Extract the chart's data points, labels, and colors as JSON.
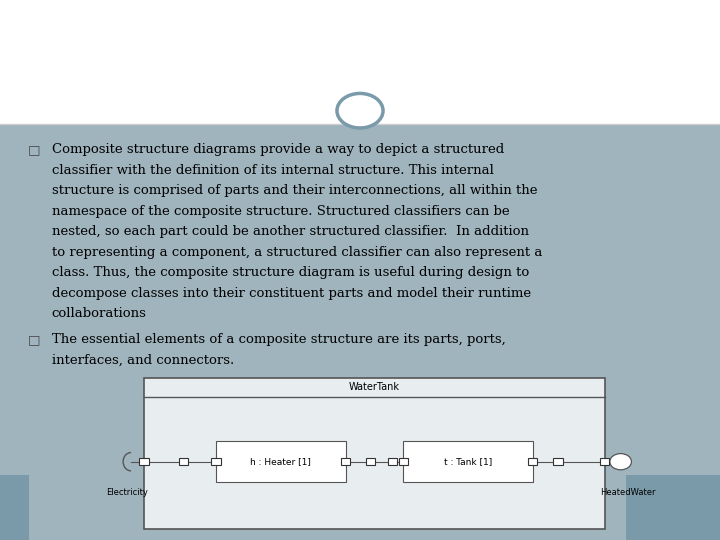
{
  "bg_top": "#ffffff",
  "bg_bottom": "#a0b4be",
  "circle_color": "#7a9aaa",
  "text_color": "#000000",
  "bullet1_lines": [
    "Composite structure diagrams provide a way to depict a structured",
    "classifier with the definition of its internal structure. This internal",
    "structure is comprised of parts and their interconnections, all within the",
    "namespace of the composite structure. Structured classifiers can be",
    "nested, so each part could be another structured classifier.  In addition",
    "to representing a component, a structured classifier can also represent a",
    "class. Thus, the composite structure diagram is useful during design to",
    "decompose classes into their constituent parts and model their runtime",
    "collaborations"
  ],
  "bullet2_lines": [
    "The essential elements of a composite structure are its parts, ports,",
    "interfaces, and connectors."
  ],
  "diagram_title": "WaterTank",
  "heater_label": "h : Heater [1]",
  "tank_label": "t : Tank [1]",
  "elec_label": "Electricity",
  "water_label": "HeatedWater",
  "font_size_text": 9.5,
  "font_family": "serif"
}
